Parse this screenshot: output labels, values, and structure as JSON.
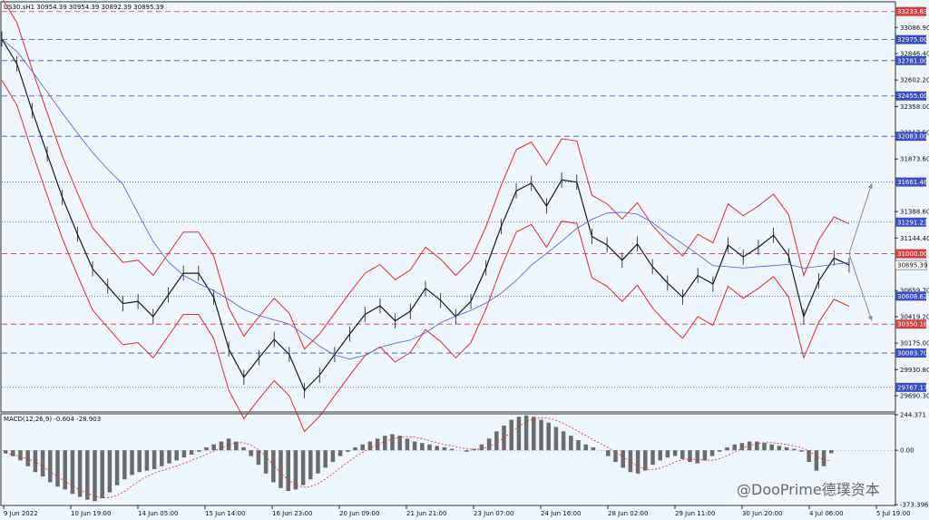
{
  "header": {
    "symbol_line": "US30.sH1  30954.39 30954.39 30892.39 30895.39"
  },
  "watermark": {
    "text": "@DooPrime德璞资本"
  },
  "chart_data": [
    {
      "type": "line",
      "subtype": "candlestick",
      "x_ticks": [
        "9 Jun 2022",
        "10 Jun 19:00",
        "14 Jun 05:00",
        "15 Jun 14:00",
        "16 Jun 23:00",
        "20 Jun 09:00",
        "21 Jun 21:00",
        "23 Jun 07:00",
        "24 Jun 16:00",
        "28 Jun 02:00",
        "29 Jun 11:00",
        "30 Jun 20:00",
        "4 Jul 06:00",
        "5 Jul 19:00"
      ],
      "y_ticks": [
        "33086.90",
        "32846.40",
        "32602.20",
        "32358.00",
        "32117.50",
        "31873.60",
        "31388.60",
        "31144.40",
        "30659.70",
        "30419.20",
        "30175.00",
        "29930.80",
        "29690.30"
      ],
      "ylim": [
        29540,
        33315
      ],
      "grid": false,
      "levels": [
        {
          "value": 33233.63,
          "label": "33233.63",
          "style": "dashed",
          "color": "#d24141"
        },
        {
          "value": 32975.0,
          "label": "32975.00",
          "style": "dashed",
          "color": "#3b4fc4"
        },
        {
          "value": 32781.0,
          "label": "32781.00",
          "style": "dashed",
          "color": "#3b4fc4"
        },
        {
          "value": 32455.0,
          "label": "32455.00",
          "style": "dashed",
          "color": "#3b4fc4"
        },
        {
          "value": 32083.0,
          "label": "32083.00",
          "style": "dashed",
          "color": "#3b4fc4"
        },
        {
          "value": 31661.46,
          "label": "31661.46",
          "style": "dotted",
          "color": "#3b4fc4"
        },
        {
          "value": 31291.23,
          "label": "31291.23",
          "style": "dotted",
          "color": "#3b4fc4"
        },
        {
          "value": 31000.0,
          "label": "31000.00",
          "style": "dashed",
          "color": "#d24141"
        },
        {
          "value": 30608.62,
          "label": "30608.62",
          "style": "dotted",
          "color": "#3b4fc4"
        },
        {
          "value": 30350.18,
          "label": "30350.18",
          "style": "dashed",
          "color": "#d24141"
        },
        {
          "value": 30083.7,
          "label": "30083.70",
          "style": "dashed",
          "color": "#3b4fc4"
        },
        {
          "value": 29767.17,
          "label": "29767.17",
          "style": "dotted",
          "color": "#3b4fc4"
        }
      ],
      "current_price": {
        "value": 30895.39,
        "label": "30895.39"
      },
      "price_path": [
        [
          0,
          32980
        ],
        [
          2,
          32750
        ],
        [
          4,
          32320
        ],
        [
          6,
          31920
        ],
        [
          8,
          31520
        ],
        [
          10,
          31180
        ],
        [
          12,
          30860
        ],
        [
          14,
          30700
        ],
        [
          16,
          30540
        ],
        [
          18,
          30560
        ],
        [
          20,
          30420
        ],
        [
          22,
          30620
        ],
        [
          24,
          30820
        ],
        [
          26,
          30820
        ],
        [
          28,
          30600
        ],
        [
          30,
          30120
        ],
        [
          32,
          29860
        ],
        [
          34,
          30040
        ],
        [
          36,
          30210
        ],
        [
          38,
          30070
        ],
        [
          40,
          29740
        ],
        [
          42,
          29880
        ],
        [
          44,
          30070
        ],
        [
          46,
          30260
        ],
        [
          48,
          30440
        ],
        [
          50,
          30520
        ],
        [
          52,
          30380
        ],
        [
          54,
          30470
        ],
        [
          56,
          30680
        ],
        [
          58,
          30570
        ],
        [
          60,
          30420
        ],
        [
          62,
          30560
        ],
        [
          64,
          30870
        ],
        [
          66,
          31250
        ],
        [
          68,
          31580
        ],
        [
          70,
          31650
        ],
        [
          72,
          31440
        ],
        [
          74,
          31680
        ],
        [
          76,
          31660
        ],
        [
          78,
          31160
        ],
        [
          80,
          31080
        ],
        [
          82,
          30940
        ],
        [
          84,
          31090
        ],
        [
          86,
          30880
        ],
        [
          88,
          30730
        ],
        [
          90,
          30600
        ],
        [
          92,
          30800
        ],
        [
          94,
          30720
        ],
        [
          96,
          31080
        ],
        [
          98,
          30970
        ],
        [
          100,
          31060
        ],
        [
          102,
          31170
        ],
        [
          104,
          30980
        ],
        [
          106,
          30420
        ],
        [
          108,
          30750
        ],
        [
          110,
          30960
        ],
        [
          112,
          30895
        ]
      ],
      "annotations": [
        {
          "type": "arrow",
          "from": [
            112,
            31000
          ],
          "to": [
            115,
            31650
          ]
        },
        {
          "type": "arrow",
          "from": [
            112,
            31000
          ],
          "to": [
            115,
            30380
          ]
        }
      ]
    },
    {
      "type": "bar",
      "title": "MACD(12,26,9) -0.604 -28.903",
      "ylim": [
        -373.396,
        244.371
      ],
      "y_ticks": [
        "244.371",
        "0.00",
        "-373.396"
      ],
      "values": [
        -20,
        -40,
        -70,
        -110,
        -150,
        -180,
        -220,
        -250,
        -270,
        -300,
        -320,
        -340,
        -350,
        -330,
        -290,
        -240,
        -200,
        -170,
        -150,
        -140,
        -130,
        -110,
        -90,
        -70,
        -50,
        -30,
        -10,
        20,
        40,
        60,
        80,
        60,
        20,
        -40,
        -100,
        -160,
        -220,
        -260,
        -280,
        -270,
        -240,
        -200,
        -160,
        -120,
        -80,
        -40,
        -10,
        20,
        40,
        60,
        80,
        100,
        110,
        100,
        80,
        60,
        50,
        40,
        30,
        20,
        10,
        0,
        -10,
        10,
        40,
        80,
        130,
        170,
        210,
        230,
        240,
        230,
        210,
        190,
        160,
        130,
        100,
        70,
        40,
        20,
        0,
        -40,
        -80,
        -120,
        -150,
        -160,
        -140,
        -100,
        -70,
        -50,
        -40,
        -60,
        -80,
        -90,
        -70,
        -40,
        -10,
        20,
        40,
        50,
        60,
        60,
        50,
        40,
        30,
        20,
        10,
        -10,
        -80,
        -140,
        -110,
        -20
      ]
    }
  ]
}
